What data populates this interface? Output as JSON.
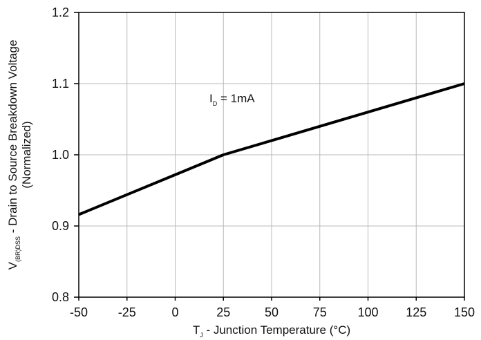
{
  "chart_data": {
    "type": "line",
    "x": [
      -50,
      -25,
      0,
      25,
      50,
      75,
      100,
      125,
      150
    ],
    "series": [
      {
        "values": [
          0.916,
          0.944,
          0.972,
          1.0,
          1.02,
          1.04,
          1.06,
          1.08,
          1.1
        ],
        "color": "#000000"
      }
    ],
    "xlim": [
      -50,
      150
    ],
    "ylim": [
      0.8,
      1.2
    ],
    "x_ticks": [
      -50,
      -25,
      0,
      25,
      50,
      75,
      100,
      125,
      150
    ],
    "y_ticks": [
      0.8,
      0.9,
      1.0,
      1.1,
      1.2
    ],
    "x_tick_labels": [
      "-50",
      "-25",
      "0",
      "25",
      "50",
      "75",
      "100",
      "125",
      "150"
    ],
    "y_tick_labels": [
      "0.8",
      "0.9",
      "1.0",
      "1.1",
      "1.2"
    ],
    "grid": true,
    "xlabel": {
      "main": "T",
      "sub": "J",
      "rest": " - Junction Temperature (°C)"
    },
    "ylabel": {
      "line1_main": "V",
      "line1_sub": "(BR)DSS",
      "line1_rest": " - Drain to Source Breakdown Voltage",
      "line2": "(Normalized)"
    },
    "annotation": {
      "main": "I",
      "sub": "D",
      "rest": " = 1mA"
    },
    "colors": {
      "grid": "#b8b8b8",
      "frame": "#000000",
      "line": "#000000"
    }
  }
}
